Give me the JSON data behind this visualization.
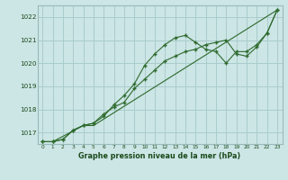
{
  "title": "Graphe pression niveau de la mer (hPa)",
  "background_color": "#cce5e5",
  "grid_color": "#aacccc",
  "line_color": "#2d6a2d",
  "marker_color": "#2d6a2d",
  "xlim": [
    -0.5,
    23.5
  ],
  "ylim": [
    1016.5,
    1022.5
  ],
  "yticks": [
    1017,
    1018,
    1019,
    1020,
    1021,
    1022
  ],
  "xticks": [
    0,
    1,
    2,
    3,
    4,
    5,
    6,
    7,
    8,
    9,
    10,
    11,
    12,
    13,
    14,
    15,
    16,
    17,
    18,
    19,
    20,
    21,
    22,
    23
  ],
  "series1": [
    1016.6,
    1016.6,
    1016.7,
    1017.1,
    1017.3,
    1017.4,
    1017.7,
    1018.2,
    1018.6,
    1019.1,
    1019.9,
    1020.4,
    1020.8,
    1021.1,
    1021.2,
    1020.9,
    1020.6,
    1020.5,
    1020.0,
    1020.5,
    1020.5,
    1020.8,
    1021.3,
    1022.3
  ],
  "series2_x": [
    0,
    1,
    4,
    5,
    23
  ],
  "series2_y": [
    1016.6,
    1016.6,
    1017.3,
    1017.3,
    1022.3
  ],
  "series3": [
    1016.6,
    1016.6,
    1016.7,
    1017.1,
    1017.3,
    1017.4,
    1017.8,
    1018.1,
    1018.3,
    1018.9,
    1019.3,
    1019.7,
    1020.1,
    1020.3,
    1020.5,
    1020.6,
    1020.8,
    1020.9,
    1021.0,
    1020.4,
    1020.3,
    1020.7,
    1021.3,
    1022.3
  ]
}
